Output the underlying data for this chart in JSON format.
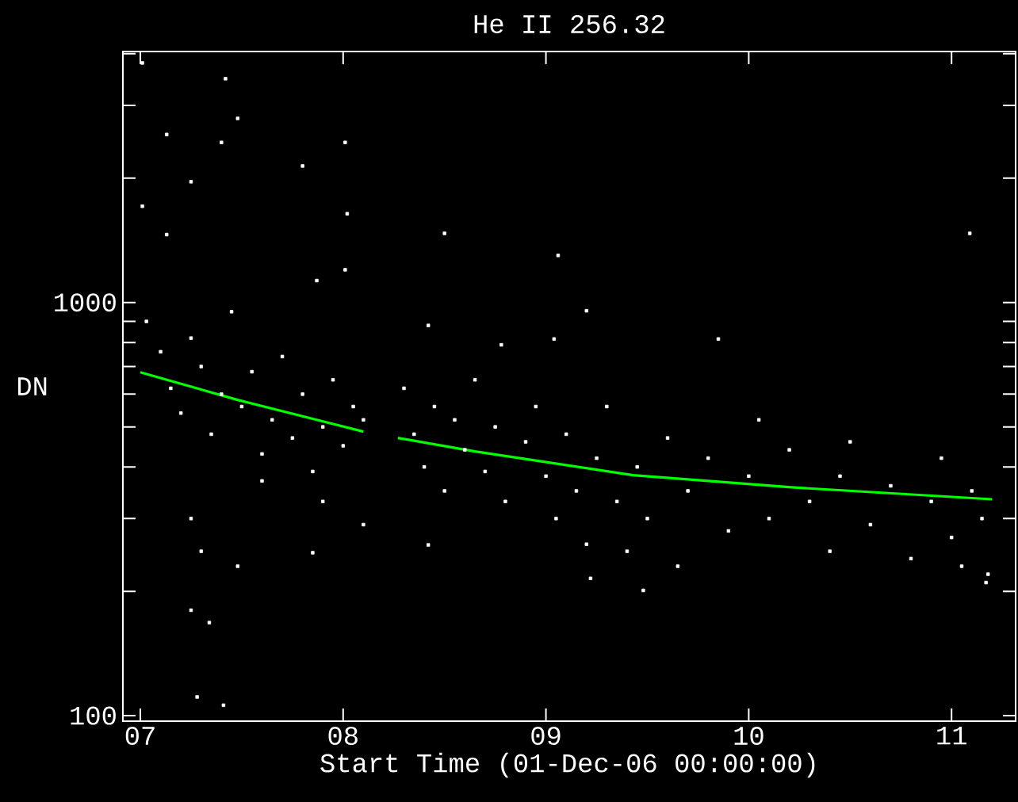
{
  "chart_data": {
    "type": "scatter",
    "title": "He II 256.32",
    "xlabel": "Start Time (01-Dec-06 00:00:00)",
    "ylabel": "DN",
    "log": "y",
    "xlim": [
      6.914,
      11.316
    ],
    "ylim": [
      97,
      4050
    ],
    "xticks": [
      {
        "value": 7,
        "label": "07"
      },
      {
        "value": 8,
        "label": "08"
      },
      {
        "value": 9,
        "label": "09"
      },
      {
        "value": 10,
        "label": "10"
      },
      {
        "value": 11,
        "label": "11"
      }
    ],
    "yticks": [
      100,
      {
        "value": 200,
        "label": null
      },
      {
        "value": 300,
        "label": null
      },
      {
        "value": 400,
        "label": null
      },
      {
        "value": 500,
        "label": null
      },
      {
        "value": 600,
        "label": null
      },
      {
        "value": 700,
        "label": null
      },
      {
        "value": 800,
        "label": null
      },
      {
        "value": 900,
        "label": null
      },
      1000,
      {
        "value": 2000,
        "label": null
      },
      {
        "value": 3000,
        "label": null
      },
      {
        "value": 4000,
        "label": null
      }
    ],
    "series": [
      {
        "marker": "square",
        "color": "#ffffff",
        "x": [
          7.01,
          7.13,
          7.42,
          7.48,
          7.4,
          7.25,
          7.8,
          8.01,
          8.02,
          7.01,
          7.13,
          8.5,
          9.06,
          11.09,
          8.01,
          7.87,
          7.03,
          7.1,
          7.15,
          7.2,
          7.25,
          7.3,
          7.35,
          7.4,
          7.45,
          7.5,
          7.55,
          7.6,
          7.65,
          7.7,
          7.75,
          7.8,
          7.85,
          7.9,
          7.95,
          8.0,
          8.05,
          8.1,
          7.25,
          7.3,
          7.48,
          7.41,
          7.34,
          7.25,
          7.28,
          8.1,
          7.9,
          7.6,
          7.85,
          8.3,
          8.35,
          8.4,
          8.45,
          8.5,
          8.55,
          8.6,
          8.65,
          8.7,
          8.75,
          8.8,
          8.9,
          8.95,
          9.0,
          9.05,
          9.1,
          9.15,
          9.2,
          9.25,
          9.3,
          9.35,
          9.4,
          9.45,
          9.5,
          9.6,
          9.65,
          9.7,
          9.8,
          9.9,
          10.0,
          10.05,
          10.1,
          10.2,
          10.3,
          10.4,
          10.45,
          10.5,
          10.6,
          10.7,
          10.8,
          10.9,
          10.95,
          11.0,
          11.05,
          11.1,
          11.15,
          11.18,
          8.42,
          8.78,
          9.04,
          9.2,
          9.85,
          9.48,
          9.22,
          8.42,
          11.17
        ],
        "values": [
          3800,
          2550,
          3480,
          2790,
          2440,
          1960,
          2140,
          2440,
          1640,
          1710,
          1460,
          1470,
          1300,
          1470,
          1200,
          1130,
          900,
          760,
          620,
          540,
          820,
          700,
          480,
          600,
          950,
          560,
          680,
          430,
          520,
          740,
          470,
          600,
          390,
          500,
          650,
          450,
          560,
          520,
          300,
          250,
          230,
          106,
          168,
          180,
          111,
          290,
          330,
          370,
          248,
          620,
          480,
          400,
          560,
          350,
          520,
          440,
          650,
          390,
          500,
          330,
          460,
          560,
          380,
          300,
          480,
          350,
          260,
          420,
          560,
          330,
          250,
          400,
          300,
          470,
          230,
          350,
          420,
          280,
          380,
          520,
          300,
          440,
          330,
          250,
          380,
          460,
          290,
          360,
          240,
          330,
          420,
          270,
          230,
          350,
          300,
          220,
          880,
          790,
          816,
          955,
          816,
          201,
          215,
          259,
          210
        ]
      },
      {
        "type": "line",
        "color": "#00ff00",
        "x": [
          7.0,
          7.48,
          7.87,
          8.1,
          8.2,
          8.27,
          8.65,
          9.43,
          10.21,
          11.2
        ],
        "values": [
          678,
          581,
          520,
          487,
          null,
          470,
          436,
          382,
          357,
          334
        ]
      }
    ]
  }
}
